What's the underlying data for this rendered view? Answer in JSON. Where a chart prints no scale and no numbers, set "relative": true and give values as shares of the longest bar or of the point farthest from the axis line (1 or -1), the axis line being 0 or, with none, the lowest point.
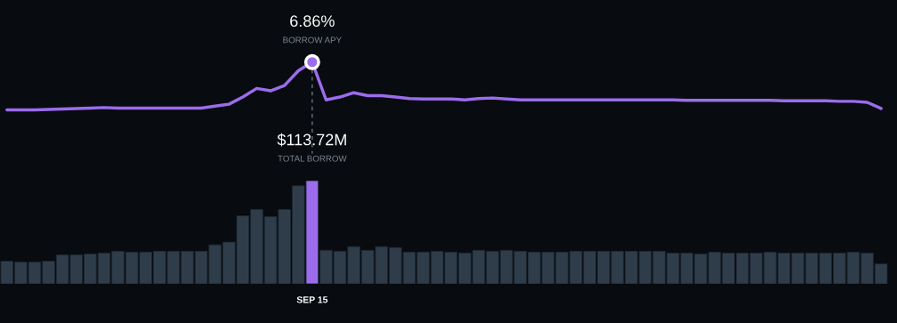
{
  "chart_data": [
    {
      "type": "line",
      "relative": true,
      "categories": [
        null,
        null,
        null,
        null,
        null,
        null,
        null,
        null,
        null,
        null,
        null,
        null,
        null,
        null,
        null,
        null,
        null,
        null,
        null,
        null,
        null,
        null,
        null,
        null,
        null,
        null,
        null,
        null,
        null,
        null,
        null,
        null,
        null,
        null,
        null,
        null,
        null,
        null,
        null,
        null,
        null,
        null,
        null,
        null,
        null,
        null,
        null,
        null,
        null,
        null,
        null,
        null,
        null,
        null,
        null,
        null,
        null,
        null,
        null,
        null,
        null,
        null,
        null,
        null
      ],
      "series": [
        {
          "color": "#9b6cec",
          "values": [
            0,
            0,
            0,
            0.01,
            0.02,
            0.03,
            0.04,
            0.05,
            0.04,
            0.04,
            0.04,
            0.04,
            0.04,
            0.04,
            0.04,
            0.08,
            0.12,
            0.27,
            0.45,
            0.4,
            0.51,
            0.82,
            1,
            0.21,
            0.27,
            0.36,
            0.3,
            0.3,
            0.27,
            0.24,
            0.23,
            0.23,
            0.23,
            0.21,
            0.24,
            0.25,
            0.23,
            0.21,
            0.21,
            0.21,
            0.21,
            0.21,
            0.21,
            0.21,
            0.21,
            0.21,
            0.21,
            0.21,
            0.21,
            0.2,
            0.2,
            0.2,
            0.2,
            0.2,
            0.2,
            0.2,
            0.19,
            0.19,
            0.19,
            0.19,
            0.18,
            0.18,
            0.16,
            0.03
          ]
        }
      ],
      "annotations": [
        "6.86%",
        "BORROW APY"
      ]
    },
    {
      "type": "bar",
      "categories": [
        null,
        null,
        null,
        null,
        null,
        null,
        null,
        null,
        null,
        null,
        null,
        null,
        null,
        null,
        null,
        null,
        null,
        null,
        null,
        null,
        null,
        null,
        "SEP 15",
        null,
        null,
        null,
        null,
        null,
        null,
        null,
        null,
        null,
        null,
        null,
        null,
        null,
        null,
        null,
        null,
        null,
        null,
        null,
        null,
        null,
        null,
        null,
        null,
        null,
        null,
        null,
        null,
        null,
        null,
        null,
        null,
        null,
        null,
        null,
        null,
        null,
        null,
        null,
        null,
        null
      ],
      "series": [
        {
          "values": [
            25,
            24,
            24,
            25,
            32,
            32,
            33,
            34,
            36,
            35,
            35,
            36,
            36,
            36,
            36,
            43,
            46,
            75,
            82,
            74,
            82,
            108,
            113.72,
            37,
            36,
            41,
            37,
            41,
            40,
            35,
            35,
            36,
            35,
            34,
            37,
            36,
            37,
            36,
            35,
            35,
            35,
            36,
            36,
            36,
            36,
            36,
            36,
            36,
            34,
            34,
            33,
            35,
            34,
            34,
            34,
            35,
            34,
            34,
            34,
            34,
            34,
            35,
            34,
            22
          ],
          "colors": [
            "#2f3d4b",
            "#2f3d4b",
            "#2f3d4b",
            "#2f3d4b",
            "#2f3d4b",
            "#2f3d4b",
            "#2f3d4b",
            "#2f3d4b",
            "#2f3d4b",
            "#2f3d4b",
            "#2f3d4b",
            "#2f3d4b",
            "#2f3d4b",
            "#2f3d4b",
            "#2f3d4b",
            "#2f3d4b",
            "#2f3d4b",
            "#2f3d4b",
            "#2f3d4b",
            "#2f3d4b",
            "#2f3d4b",
            "#2f3d4b",
            "#9b6cec",
            "#2f3d4b",
            "#2f3d4b",
            "#2f3d4b",
            "#2f3d4b",
            "#2f3d4b",
            "#2f3d4b",
            "#2f3d4b",
            "#2f3d4b",
            "#2f3d4b",
            "#2f3d4b",
            "#2f3d4b",
            "#2f3d4b",
            "#2f3d4b",
            "#2f3d4b",
            "#2f3d4b",
            "#2f3d4b",
            "#2f3d4b",
            "#2f3d4b",
            "#2f3d4b",
            "#2f3d4b",
            "#2f3d4b",
            "#2f3d4b",
            "#2f3d4b",
            "#2f3d4b",
            "#2f3d4b",
            "#2f3d4b",
            "#2f3d4b",
            "#2f3d4b",
            "#2f3d4b",
            "#2f3d4b",
            "#2f3d4b",
            "#2f3d4b",
            "#2f3d4b",
            "#2f3d4b",
            "#2f3d4b",
            "#2f3d4b",
            "#2f3d4b",
            "#2f3d4b",
            "#2f3d4b",
            "#2f3d4b",
            "#2f3d4b"
          ],
          "value_labels": [
            null,
            null,
            null,
            null,
            null,
            null,
            null,
            null,
            null,
            null,
            null,
            null,
            null,
            null,
            null,
            null,
            null,
            null,
            null,
            null,
            null,
            null,
            "$113.72M",
            null,
            null,
            null,
            null,
            null,
            null,
            null,
            null,
            null,
            null,
            null,
            null,
            null,
            null,
            null,
            null,
            null,
            null,
            null,
            null,
            null,
            null,
            null,
            null,
            null,
            null,
            null,
            null,
            null,
            null,
            null,
            null,
            null,
            null,
            null,
            null,
            null,
            null,
            null,
            null,
            null
          ]
        }
      ],
      "annotations": [
        "TOTAL BORROW"
      ]
    }
  ]
}
